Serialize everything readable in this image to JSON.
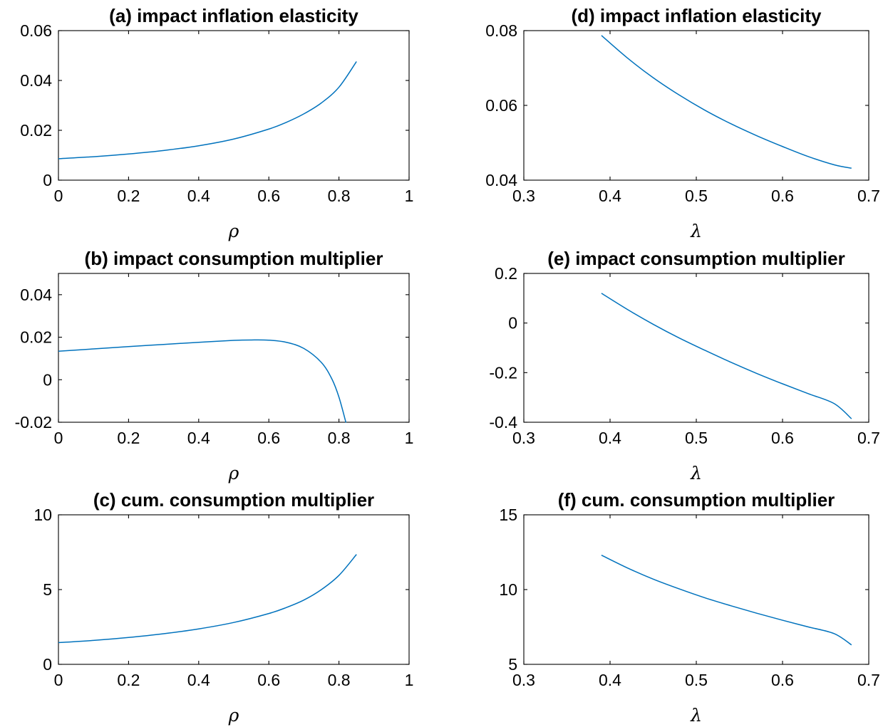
{
  "chart_data": [
    {
      "id": "a",
      "type": "line",
      "title": "(a) impact inflation elasticity",
      "xlabel": "ρ",
      "ylabel": "",
      "xlim": [
        0,
        1
      ],
      "ylim": [
        0,
        0.06
      ],
      "xticks": [
        0,
        0.2,
        0.4,
        0.6,
        0.8,
        1
      ],
      "xticklabels": [
        "0",
        "0.2",
        "0.4",
        "0.6",
        "0.8",
        "1"
      ],
      "yticks": [
        0,
        0.02,
        0.04,
        0.06
      ],
      "yticklabels": [
        "0",
        "0.02",
        "0.04",
        "0.06"
      ],
      "grid": false,
      "series": [
        {
          "color": "#0072BD",
          "x": [
            0,
            0.1,
            0.2,
            0.3,
            0.4,
            0.5,
            0.6,
            0.65,
            0.7,
            0.75,
            0.8,
            0.85
          ],
          "y": [
            0.0086,
            0.0094,
            0.0105,
            0.0119,
            0.0138,
            0.0165,
            0.0205,
            0.0232,
            0.0266,
            0.031,
            0.0373,
            0.0476
          ]
        }
      ]
    },
    {
      "id": "b",
      "type": "line",
      "title": "(b) impact consumption multiplier",
      "xlabel": "ρ",
      "ylabel": "",
      "xlim": [
        0,
        1
      ],
      "ylim": [
        -0.02,
        0.05
      ],
      "xticks": [
        0,
        0.2,
        0.4,
        0.6,
        0.8,
        1
      ],
      "xticklabels": [
        "0",
        "0.2",
        "0.4",
        "0.6",
        "0.8",
        "1"
      ],
      "yticks": [
        -0.02,
        0,
        0.02,
        0.04
      ],
      "yticklabels": [
        "-0.02",
        "0",
        "0.02",
        "0.04"
      ],
      "grid": false,
      "series": [
        {
          "color": "#0072BD",
          "x": [
            0,
            0.1,
            0.2,
            0.3,
            0.4,
            0.5,
            0.55,
            0.6,
            0.65,
            0.7,
            0.75,
            0.78,
            0.8,
            0.82
          ],
          "y": [
            0.0134,
            0.0145,
            0.0156,
            0.0166,
            0.0176,
            0.0185,
            0.0187,
            0.0186,
            0.0176,
            0.0147,
            0.0081,
            0.0003,
            -0.0082,
            -0.0202
          ]
        }
      ]
    },
    {
      "id": "c",
      "type": "line",
      "title": "(c) cum. consumption multiplier",
      "xlabel": "ρ",
      "ylabel": "",
      "xlim": [
        0,
        1
      ],
      "ylim": [
        0,
        10
      ],
      "xticks": [
        0,
        0.2,
        0.4,
        0.6,
        0.8,
        1
      ],
      "xticklabels": [
        "0",
        "0.2",
        "0.4",
        "0.6",
        "0.8",
        "1"
      ],
      "yticks": [
        0,
        5,
        10
      ],
      "yticklabels": [
        "0",
        "5",
        "10"
      ],
      "grid": false,
      "series": [
        {
          "color": "#0072BD",
          "x": [
            0,
            0.1,
            0.2,
            0.3,
            0.4,
            0.5,
            0.6,
            0.65,
            0.7,
            0.75,
            0.8,
            0.85
          ],
          "y": [
            1.45,
            1.6,
            1.8,
            2.05,
            2.37,
            2.8,
            3.4,
            3.8,
            4.3,
            5.0,
            5.95,
            7.35
          ]
        }
      ]
    },
    {
      "id": "d",
      "type": "line",
      "title": "(d) impact inflation elasticity",
      "xlabel": "λ",
      "ylabel": "",
      "xlim": [
        0.3,
        0.7
      ],
      "ylim": [
        0.04,
        0.08
      ],
      "xticks": [
        0.3,
        0.4,
        0.5,
        0.6,
        0.7
      ],
      "xticklabels": [
        "0.3",
        "0.4",
        "0.5",
        "0.6",
        "0.7"
      ],
      "yticks": [
        0.04,
        0.06,
        0.08
      ],
      "yticklabels": [
        "0.04",
        "0.06",
        "0.08"
      ],
      "grid": false,
      "series": [
        {
          "color": "#0072BD",
          "x": [
            0.39,
            0.42,
            0.45,
            0.48,
            0.51,
            0.54,
            0.57,
            0.6,
            0.63,
            0.66,
            0.68
          ],
          "y": [
            0.0787,
            0.0727,
            0.0674,
            0.0628,
            0.0587,
            0.0551,
            0.0519,
            0.049,
            0.0463,
            0.0441,
            0.0432
          ]
        }
      ]
    },
    {
      "id": "e",
      "type": "line",
      "title": "(e) impact consumption multiplier",
      "xlabel": "λ",
      "ylabel": "",
      "xlim": [
        0.3,
        0.7
      ],
      "ylim": [
        -0.4,
        0.2
      ],
      "xticks": [
        0.3,
        0.4,
        0.5,
        0.6,
        0.7
      ],
      "xticklabels": [
        "0.3",
        "0.4",
        "0.5",
        "0.6",
        "0.7"
      ],
      "yticks": [
        -0.4,
        -0.2,
        0,
        0.2
      ],
      "yticklabels": [
        "-0.4",
        "-0.2",
        "0",
        "0.2"
      ],
      "grid": false,
      "series": [
        {
          "color": "#0072BD",
          "x": [
            0.39,
            0.42,
            0.45,
            0.48,
            0.51,
            0.54,
            0.57,
            0.6,
            0.63,
            0.66,
            0.68
          ],
          "y": [
            0.12,
            0.055,
            -0.005,
            -0.06,
            -0.11,
            -0.158,
            -0.203,
            -0.245,
            -0.285,
            -0.325,
            -0.386
          ]
        }
      ]
    },
    {
      "id": "f",
      "type": "line",
      "title": "(f) cum. consumption multiplier",
      "xlabel": "λ",
      "ylabel": "",
      "xlim": [
        0.3,
        0.7
      ],
      "ylim": [
        5,
        15
      ],
      "xticks": [
        0.3,
        0.4,
        0.5,
        0.6,
        0.7
      ],
      "xticklabels": [
        "0.3",
        "0.4",
        "0.5",
        "0.6",
        "0.7"
      ],
      "yticks": [
        5,
        10,
        15
      ],
      "yticklabels": [
        "5",
        "10",
        "15"
      ],
      "grid": false,
      "series": [
        {
          "color": "#0072BD",
          "x": [
            0.39,
            0.42,
            0.45,
            0.48,
            0.51,
            0.54,
            0.57,
            0.6,
            0.63,
            0.66,
            0.68
          ],
          "y": [
            12.3,
            11.45,
            10.7,
            10.05,
            9.45,
            8.92,
            8.42,
            7.95,
            7.5,
            7.05,
            6.3
          ]
        }
      ]
    }
  ]
}
